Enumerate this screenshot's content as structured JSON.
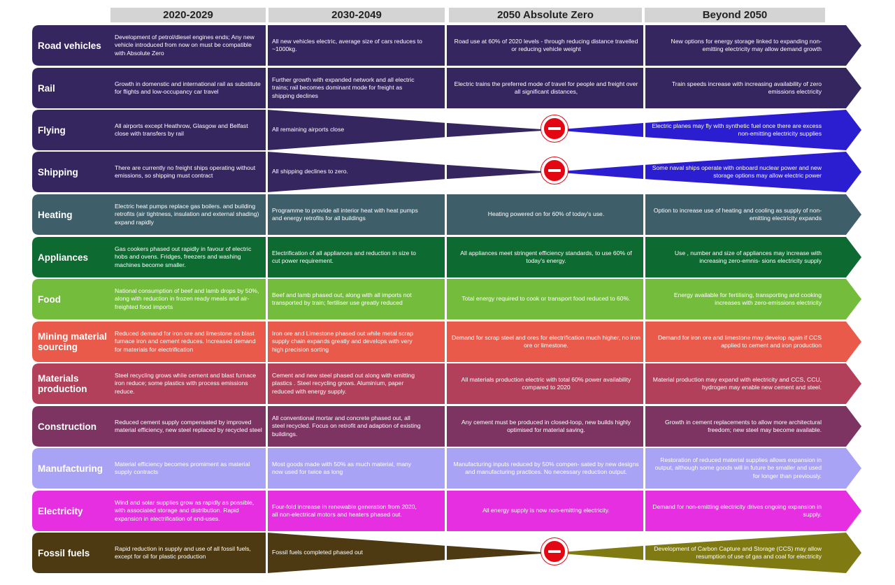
{
  "headers": [
    "2020-2029",
    "2030-2049",
    "2050 Absolute Zero",
    "Beyond 2050"
  ],
  "rows": [
    {
      "label": "Road vehicles",
      "color": "#35265f",
      "ends_at_zero": false,
      "cells": [
        "Development of petrol/diesel engines ends; Any new vehicle introduced from now on must be compatible with Absolute Zero",
        "All new vehicles electric, average size of cars reduces to ~1000kg.",
        "Road use at 60% of 2020 levels - through reducing distance travelled or reducing vehicle weight",
        "New options for energy storage linked to expanding non-emitting electricity may allow demand growth"
      ]
    },
    {
      "label": "Rail",
      "color": "#35265f",
      "ends_at_zero": false,
      "cells": [
        "Growth in domenstic and international rail as substitute for flights and low-occupancy car travel",
        "Further growth with expanded network and all electric trains; rail becomes dominant mode for freight as shipping declines",
        "Electric trains the preferred mode of travel for people and freight over all significant distances,",
        "Train speeds increase with increasing availability of zero emissions electricity"
      ]
    },
    {
      "label": "Flying",
      "color": "#35265f",
      "ends_at_zero": true,
      "beyond_color": "#2b1ed1",
      "cells": [
        "All airports except Heathrow, Glasgow and Belfast close with transfers by rail",
        "All remaining airports close",
        "",
        "Electric planes may fly with synthetic fuel once there are excess non-emitting electricity supplies"
      ]
    },
    {
      "label": "Shipping",
      "color": "#35265f",
      "ends_at_zero": true,
      "beyond_color": "#2b1ed1",
      "cells": [
        "There are currently no freight ships operating without emissions, so shipping must contract",
        "All shipping declines to zero.",
        "",
        "Some naval ships operate with onboard nuclear power and new storage options may allow electric power"
      ]
    },
    {
      "label": "Heating",
      "color": "#3e5f6a",
      "ends_at_zero": false,
      "cells": [
        "Electric heat pumps replace gas boilers. and building retrofits (air tightness, insulation and external shading) expand rapidly",
        "Programme to provide all interior heat with heat pumps and energy retrofits for all buildings",
        "Heating powered on for 60% of today's use.",
        "Option to increase use of heating and cooling as supply of non-emitting electricity expands"
      ]
    },
    {
      "label": "Appliances",
      "color": "#0d6a30",
      "ends_at_zero": false,
      "cells": [
        "Gas cookers phased out rapidly in favour of electric hobs and ovens. Fridges, freezers and washing machines become smaller.",
        "Electrification of all appliances and reduction in size to cut power requirement.",
        "All appliances meet stringent efficiency standards, to use 60% of today's energy.",
        "Use , number and size of appliances may increase with increasing zero-emnis- sions electricity supply"
      ]
    },
    {
      "label": "Food",
      "color": "#74bd3c",
      "ends_at_zero": false,
      "cells": [
        "National consumption of beef and lamb drops by 50%, along with reduction in frozen ready meals and air-freighted food imports",
        "Beef and lamb phased out, along with all imports not transported by train; fertiliser use greatly reduced",
        "Total energy required to cook or transport food reduced to 60%.",
        "Energy available for fertilising, transporting and cooking increases with zero-emissions electricity"
      ]
    },
    {
      "label": "Mining material sourcing",
      "color": "#ea5a4a",
      "ends_at_zero": false,
      "cells": [
        "Reduced demand for iron ore and limestone as blast furnace iron and cement reduces. Increased demand for materials for electrification",
        "Iron ore and Limestone phased out while metal scrap supply chain expands greatly and develops with very high precision sorting",
        "Demand for scrap steel and ores for electrification much higher, no iron ore or limestone.",
        "Demand for iron ore and limestone may develop again if CCS applied to cement and iron production"
      ]
    },
    {
      "label": "Materials production",
      "color": "#b3405b",
      "ends_at_zero": false,
      "cells": [
        "Steel recycling grows while cement and blast furnace iron reduce; some plastics with process emissions reduce.",
        "Cement and new steel phased out along with emitting plastics . Steel recycling grows. Aluminium, paper reduced with energy supply.",
        "All materials production electric with total 60% power availability compared to 2020",
        "Material production may expand with electricity and CCS, CCU, hydrogen may enable new cement and steel."
      ]
    },
    {
      "label": "Construction",
      "color": "#7d3463",
      "ends_at_zero": false,
      "cells": [
        "Reduced cement supply compensated by improved material efficiency, new steel replaced by recycled steel",
        "All conventional mortar and concrete phased out, all steel recycled. Focus on retrofit and adaption of existing buildings.",
        "Any cement must be produced in closed-loop, new builds highly optimised for material saving.",
        "Growth in cement replacements to allow more architectural freedom; new steel may become available."
      ]
    },
    {
      "label": "Manufacturing",
      "color": "#a8a3f5",
      "ends_at_zero": false,
      "cells": [
        "Material efficiency becomes promiment as material supply contracts",
        "Most goods made with 50% as much material, many now used for twice as long",
        "Manufacturing inputs reduced by 50% compen- sated by new designs and manufacturing practices. No necessary reduction output.",
        "Restoration of reduced material supplies allows expansion in output, although some goods will in future be smaller and used for longer than previously."
      ]
    },
    {
      "label": "Electricity",
      "color": "#e52fe1",
      "ends_at_zero": false,
      "cells": [
        "Wind and solar supplies grow as rapidly as possible, with associated storage and distribution. Rapid expansion in electrification of end-uses.",
        "Four-fold increase in renewable generation from 2020, all non-electrical motors and heaters phased out.",
        "All energy supply is now non-emitting electricity.",
        "Demand for non-emitting electricity drives ongoing expansion in supply."
      ]
    },
    {
      "label": "Fossil fuels",
      "color": "#4d3a12",
      "ends_at_zero": true,
      "beyond_color": "#807a12",
      "cells": [
        "Rapid reduction in supply and use of all fossil fuels, except for oil for plastic production",
        "Fossil fuels completed phased out",
        "",
        "Development of Carbon Capture and Storage (CCS) may allow resumption of use of gas and coal for electricity"
      ]
    }
  ]
}
